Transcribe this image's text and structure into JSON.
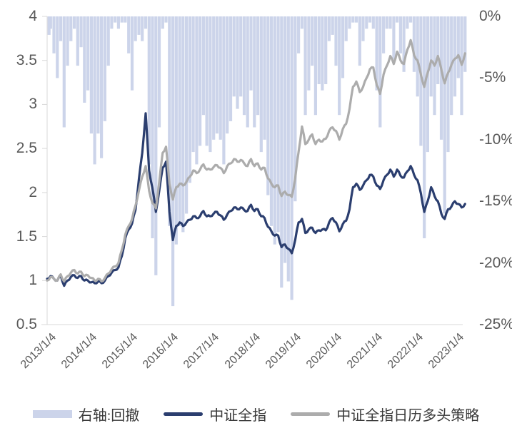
{
  "chart_data": {
    "type": "combo",
    "x_frequency": "monthly",
    "x_start": "2013/01",
    "x_end": "2023/04",
    "x_tick_labels": [
      "2013/1/4",
      "2014/1/4",
      "2015/1/4",
      "2016/1/4",
      "2017/1/4",
      "2018/1/4",
      "2019/1/4",
      "2020/1/4",
      "2021/1/4",
      "2022/1/4",
      "2023/1/4"
    ],
    "left_axis": {
      "min": 0.5,
      "max": 4,
      "ticks": [
        4,
        3.5,
        3,
        2.5,
        2,
        1.5,
        1,
        0.5
      ]
    },
    "right_axis": {
      "min": -25,
      "max": 0,
      "tick_labels": [
        "0%",
        "-5%",
        "-10%",
        "-15%",
        "-20%",
        "-25%"
      ]
    },
    "grid": "none",
    "legend_position": "bottom",
    "series": [
      {
        "name": "右轴:回撤",
        "type": "area",
        "axis": "right",
        "color": "#CCD4EA",
        "values": [
          -1.5,
          -1,
          -3,
          -5,
          -2,
          -9,
          -4,
          -2,
          -1,
          -4,
          -2.5,
          -7,
          -6,
          -9.5,
          -12,
          -9.5,
          -11.5,
          -8.5,
          -4,
          -1,
          -0.5,
          -1,
          -0.5,
          -0.5,
          -3,
          -6,
          -2,
          -1.5,
          -2,
          -1,
          -12,
          -18,
          -21,
          -9,
          -1,
          -0.5,
          -17,
          -23.5,
          -18.5,
          -17,
          -17.5,
          -16,
          -13.5,
          -11,
          -12,
          -10.5,
          -8,
          -10.5,
          -11,
          -10,
          -9.5,
          -10,
          -12,
          -9.5,
          -8.5,
          -6.5,
          -7.5,
          -6.5,
          -8,
          -9,
          -6,
          -9,
          -8,
          -11,
          -10,
          -14.5,
          -17,
          -18.5,
          -17.5,
          -22,
          -20,
          -21.5,
          -23,
          -15,
          -3,
          -1,
          -8,
          -6,
          -4,
          -8,
          -5.5,
          -6,
          -5.5,
          -2,
          -1.5,
          -4,
          -8,
          -5,
          -2,
          -1,
          -0.5,
          -0.5,
          -4,
          -2,
          -1,
          -0.5,
          -1,
          -6,
          -9,
          -3,
          -1,
          -1,
          -3.5,
          -0.5,
          -3,
          -4.5,
          -1,
          -0.5,
          -4.5,
          -6.5,
          -10.5,
          -18,
          -11,
          -6.5,
          -8,
          -5.5,
          -10,
          -16,
          -11,
          -8,
          -6.5,
          -5,
          -8,
          -4.5
        ]
      },
      {
        "name": "中证全指",
        "type": "line",
        "axis": "left",
        "color": "#2B3E6F",
        "values": [
          1.02,
          1.05,
          1.02,
          1.0,
          1.06,
          0.94,
          1.0,
          1.04,
          1.06,
          1.03,
          1.05,
          1.0,
          1.0,
          0.98,
          0.97,
          0.99,
          0.97,
          1.0,
          1.05,
          1.09,
          1.12,
          1.15,
          1.28,
          1.48,
          1.58,
          1.65,
          1.8,
          2.15,
          2.45,
          2.9,
          2.25,
          2.05,
          1.78,
          2.02,
          2.28,
          2.35,
          1.78,
          1.46,
          1.62,
          1.66,
          1.62,
          1.66,
          1.69,
          1.73,
          1.71,
          1.73,
          1.79,
          1.73,
          1.73,
          1.76,
          1.78,
          1.74,
          1.69,
          1.75,
          1.79,
          1.83,
          1.81,
          1.83,
          1.8,
          1.79,
          1.86,
          1.79,
          1.81,
          1.73,
          1.71,
          1.61,
          1.56,
          1.51,
          1.51,
          1.38,
          1.41,
          1.36,
          1.31,
          1.46,
          1.66,
          1.7,
          1.54,
          1.58,
          1.6,
          1.54,
          1.57,
          1.58,
          1.57,
          1.66,
          1.71,
          1.66,
          1.56,
          1.64,
          1.68,
          1.81,
          2.06,
          2.1,
          2.03,
          2.08,
          2.14,
          2.2,
          2.18,
          2.08,
          2.04,
          2.14,
          2.2,
          2.26,
          2.18,
          2.26,
          2.19,
          2.17,
          2.24,
          2.3,
          2.2,
          2.14,
          1.99,
          1.78,
          1.9,
          2.06,
          1.96,
          1.9,
          1.76,
          1.7,
          1.81,
          1.84,
          1.9,
          1.87,
          1.83,
          1.87
        ]
      },
      {
        "name": "中证全指日历多头策略",
        "type": "line",
        "axis": "left",
        "color": "#ACACAC",
        "values": [
          1.0,
          1.04,
          1.02,
          1.0,
          1.07,
          0.99,
          1.05,
          1.09,
          1.12,
          1.08,
          1.1,
          1.05,
          1.06,
          1.03,
          1.0,
          1.02,
          0.99,
          1.03,
          1.08,
          1.13,
          1.16,
          1.2,
          1.35,
          1.52,
          1.62,
          1.7,
          1.85,
          2.02,
          2.18,
          2.3,
          2.02,
          1.88,
          1.82,
          2.12,
          2.45,
          2.52,
          2.1,
          1.92,
          2.06,
          2.1,
          2.08,
          2.12,
          2.18,
          2.25,
          2.22,
          2.26,
          2.32,
          2.26,
          2.26,
          2.29,
          2.31,
          2.28,
          2.22,
          2.3,
          2.33,
          2.38,
          2.35,
          2.37,
          2.33,
          2.3,
          2.38,
          2.3,
          2.33,
          2.26,
          2.28,
          2.16,
          2.1,
          2.06,
          2.08,
          1.96,
          2.01,
          1.97,
          1.95,
          2.16,
          2.46,
          2.75,
          2.55,
          2.6,
          2.66,
          2.55,
          2.6,
          2.58,
          2.61,
          2.7,
          2.74,
          2.7,
          2.6,
          2.72,
          2.78,
          2.95,
          3.2,
          3.26,
          3.14,
          3.2,
          3.3,
          3.4,
          3.42,
          3.22,
          3.12,
          3.34,
          3.44,
          3.55,
          3.46,
          3.6,
          3.5,
          3.46,
          3.62,
          3.73,
          3.56,
          3.5,
          3.34,
          3.2,
          3.36,
          3.5,
          3.44,
          3.55,
          3.4,
          3.24,
          3.36,
          3.45,
          3.52,
          3.56,
          3.45,
          3.58
        ]
      }
    ]
  },
  "colors": {
    "background": "#FFFFFF",
    "axis_line": "#D9D9D9",
    "tick_label": "#595959",
    "legend_text": "#3A3A3A",
    "drawdown_fill": "#CCD4EA",
    "index_line": "#2B3E6F",
    "strategy_line": "#ACACAC"
  }
}
